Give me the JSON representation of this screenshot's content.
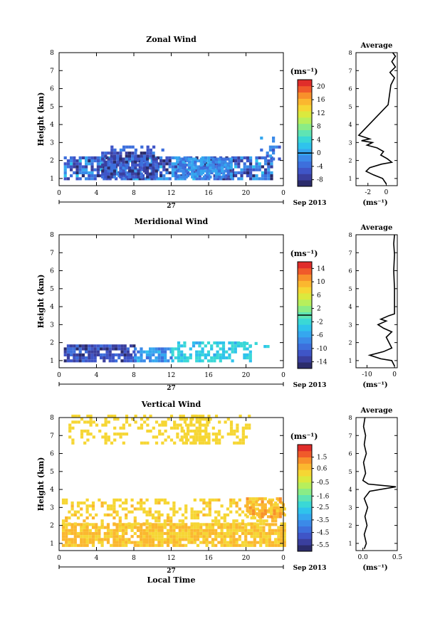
{
  "chart_data": [
    {
      "type": "heatmap",
      "title": "Zonal Wind",
      "ylabel": "Height (km)",
      "ylim": [
        0.6,
        8
      ],
      "yticks": [
        "1",
        "2",
        "3",
        "4",
        "5",
        "6",
        "7",
        "8"
      ],
      "xlim": [
        0,
        24
      ],
      "xticks": [
        "0",
        "4",
        "8",
        "12",
        "16",
        "20",
        "0"
      ],
      "date_day": "27",
      "date_month": "Sep 2013",
      "colorbar": {
        "unit": "(ms⁻¹)",
        "min": -10,
        "max": 22,
        "ticks": [
          "20",
          "16",
          "12",
          "8",
          "4",
          "0",
          "-4",
          "-8"
        ],
        "marker": 0,
        "colors": [
          "#2b2c6b",
          "#3a3f9e",
          "#3f55c7",
          "#3d6fdc",
          "#3b8ae8",
          "#35a7ef",
          "#2fc3ec",
          "#3ad8d6",
          "#5fe4b3",
          "#8aec86",
          "#b7ef5c",
          "#dbe93e",
          "#f6d634",
          "#fbb72f",
          "#f8902b",
          "#f05a2a",
          "#e02d2a"
        ]
      },
      "clusters": [
        {
          "h0": 0.5,
          "h1": 22.8,
          "z0": 0.9,
          "z1": 2.1,
          "cmin": -9,
          "cmax": 2,
          "density": 0.78
        },
        {
          "h0": 4.5,
          "h1": 10.5,
          "z0": 1.0,
          "z1": 2.4,
          "cmin": -9,
          "cmax": -2,
          "density": 0.85
        },
        {
          "h0": 12.5,
          "h1": 18.5,
          "z0": 1.0,
          "z1": 2.0,
          "cmin": -4,
          "cmax": 1,
          "density": 0.75
        },
        {
          "h0": 5.5,
          "h1": 11.5,
          "z0": 2.5,
          "z1": 2.7,
          "cmin": -6,
          "cmax": -2,
          "density": 0.3
        },
        {
          "h0": 21.5,
          "h1": 23.5,
          "z0": 2.0,
          "z1": 3.2,
          "cmin": -6,
          "cmax": 0,
          "density": 0.25
        }
      ],
      "average_profile": {
        "title": "Average",
        "xlabel": "(ms⁻¹)",
        "xlim": [
          -3.3,
          1.2
        ],
        "xticks": [
          "-2",
          "0"
        ],
        "points": [
          [
            0,
            0.7
          ],
          [
            -0.4,
            1.0
          ],
          [
            -1.4,
            1.2
          ],
          [
            -2.2,
            1.4
          ],
          [
            -1.8,
            1.6
          ],
          [
            -0.5,
            1.8
          ],
          [
            0.6,
            1.9
          ],
          [
            0.1,
            2.1
          ],
          [
            -0.6,
            2.3
          ],
          [
            -0.3,
            2.5
          ],
          [
            -1.0,
            2.7
          ],
          [
            -2.1,
            2.85
          ],
          [
            -1.5,
            3.0
          ],
          [
            -2.7,
            3.1
          ],
          [
            -1.8,
            3.2
          ],
          [
            -2.4,
            3.3
          ],
          [
            -3.0,
            3.4
          ],
          [
            0.2,
            5.1
          ],
          [
            0.5,
            6.2
          ],
          [
            0.9,
            6.6
          ],
          [
            0.4,
            6.9
          ],
          [
            1.0,
            7.2
          ],
          [
            0.6,
            7.5
          ],
          [
            1.0,
            7.8
          ],
          [
            0.7,
            8.0
          ]
        ]
      }
    },
    {
      "type": "heatmap",
      "title": "Meridional Wind",
      "ylabel": "Height (km)",
      "ylim": [
        0.6,
        8
      ],
      "yticks": [
        "1",
        "2",
        "3",
        "4",
        "5",
        "6",
        "7",
        "8"
      ],
      "xlim": [
        0,
        24
      ],
      "xticks": [
        "0",
        "4",
        "8",
        "12",
        "16",
        "20",
        "0"
      ],
      "date_day": "27",
      "date_month": "Sep 2013",
      "colorbar": {
        "unit": "(ms⁻¹)",
        "min": -16,
        "max": 16,
        "ticks": [
          "14",
          "10",
          "6",
          "2",
          "-2",
          "-6",
          "-10",
          "-14"
        ],
        "marker": 0,
        "colors": [
          "#2b2c6b",
          "#3a3f9e",
          "#3f55c7",
          "#3d6fdc",
          "#3b8ae8",
          "#35a7ef",
          "#2fc3ec",
          "#3ad8d6",
          "#5fe4b3",
          "#8aec86",
          "#b7ef5c",
          "#dbe93e",
          "#f6d634",
          "#fbb72f",
          "#f8902b",
          "#f05a2a",
          "#e02d2a"
        ]
      },
      "clusters": [
        {
          "h0": 0.5,
          "h1": 8.0,
          "z0": 0.9,
          "z1": 1.8,
          "cmin": -15,
          "cmax": -9,
          "density": 0.85
        },
        {
          "h0": 8.0,
          "h1": 12.0,
          "z0": 0.9,
          "z1": 1.6,
          "cmin": -10,
          "cmax": -4,
          "density": 0.7
        },
        {
          "h0": 12.0,
          "h1": 20.5,
          "z0": 0.9,
          "z1": 1.9,
          "cmin": -5,
          "cmax": -1,
          "density": 0.6
        },
        {
          "h0": 19.0,
          "h1": 23.0,
          "z0": 1.7,
          "z1": 2.0,
          "cmin": -3,
          "cmax": -1,
          "density": 0.5
        }
      ],
      "average_profile": {
        "title": "Average",
        "xlabel": "(ms⁻¹)",
        "xlim": [
          -14,
          1
        ],
        "xticks": [
          "-10",
          "0"
        ],
        "points": [
          [
            0,
            0.7
          ],
          [
            -1,
            1.0
          ],
          [
            -5,
            1.1
          ],
          [
            -9,
            1.3
          ],
          [
            -4,
            1.5
          ],
          [
            -1,
            1.7
          ],
          [
            -2,
            2.0
          ],
          [
            -3,
            2.3
          ],
          [
            -1,
            2.6
          ],
          [
            -4,
            2.8
          ],
          [
            -6,
            3.0
          ],
          [
            -3,
            3.2
          ],
          [
            -5,
            3.3
          ],
          [
            -2,
            3.5
          ],
          [
            0,
            3.6
          ],
          [
            0,
            5.0
          ],
          [
            -0.3,
            6.0
          ],
          [
            0,
            6.9
          ],
          [
            -0.3,
            7.5
          ],
          [
            0,
            8.0
          ]
        ]
      }
    },
    {
      "type": "heatmap",
      "title": "Vertical Wind",
      "ylabel": "Height (km)",
      "ylim": [
        0.6,
        8
      ],
      "yticks": [
        "1",
        "2",
        "3",
        "4",
        "5",
        "6",
        "7",
        "8"
      ],
      "xlim": [
        0,
        24
      ],
      "xticks": [
        "0",
        "4",
        "8",
        "12",
        "16",
        "20",
        "0"
      ],
      "xlabel": "Local Time",
      "date_day": "27",
      "date_month": "Sep 2013",
      "colorbar": {
        "unit": "(ms⁻¹)",
        "min": -6,
        "max": 2.5,
        "ticks": [
          "1.5",
          "0.6",
          "-0.5",
          "-1.6",
          "-2.5",
          "-3.5",
          "-4.5",
          "-5.5"
        ],
        "colors": [
          "#2b2c6b",
          "#3a3f9e",
          "#3f55c7",
          "#3d6fdc",
          "#3b8ae8",
          "#35a7ef",
          "#2fc3ec",
          "#3ad8d6",
          "#5fe4b3",
          "#8aec86",
          "#b7ef5c",
          "#dbe93e",
          "#f6d634",
          "#fbb72f",
          "#f8902b",
          "#f05a2a",
          "#e02d2a"
        ]
      },
      "clusters": [
        {
          "h0": 0.3,
          "h1": 24,
          "z0": 0.8,
          "z1": 2.0,
          "cmin": 0.2,
          "cmax": 0.8,
          "density": 0.85
        },
        {
          "h0": 0.3,
          "h1": 24,
          "z0": 2.0,
          "z1": 3.4,
          "cmin": 0.0,
          "cmax": 0.6,
          "density": 0.35
        },
        {
          "h0": 20.0,
          "h1": 24,
          "z0": 2.4,
          "z1": 3.4,
          "cmin": 0.3,
          "cmax": 1.2,
          "density": 0.75
        },
        {
          "h0": 1.0,
          "h1": 20.5,
          "z0": 6.5,
          "z1": 8.0,
          "cmin": 0.0,
          "cmax": 0.3,
          "density": 0.3
        },
        {
          "h0": 13.0,
          "h1": 16.0,
          "z0": 6.5,
          "z1": 8.0,
          "cmin": 0.2,
          "cmax": 0.5,
          "density": 0.55
        }
      ],
      "average_profile": {
        "title": "Average",
        "xlabel": "(ms⁻¹)",
        "xlim": [
          -0.1,
          0.5
        ],
        "xticks": [
          "0.0",
          "0.5"
        ],
        "points": [
          [
            0.02,
            0.7
          ],
          [
            0.05,
            1.0
          ],
          [
            0.02,
            1.5
          ],
          [
            0.06,
            2.0
          ],
          [
            0.03,
            2.5
          ],
          [
            0.07,
            3.0
          ],
          [
            0.02,
            3.5
          ],
          [
            0.1,
            3.9
          ],
          [
            0.48,
            4.15
          ],
          [
            0.08,
            4.3
          ],
          [
            0.0,
            4.5
          ],
          [
            0.04,
            4.9
          ],
          [
            0.01,
            5.5
          ],
          [
            0.05,
            6.0
          ],
          [
            0.02,
            6.5
          ],
          [
            0.04,
            7.0
          ],
          [
            0.01,
            7.5
          ],
          [
            0.03,
            8.0
          ]
        ]
      }
    }
  ]
}
